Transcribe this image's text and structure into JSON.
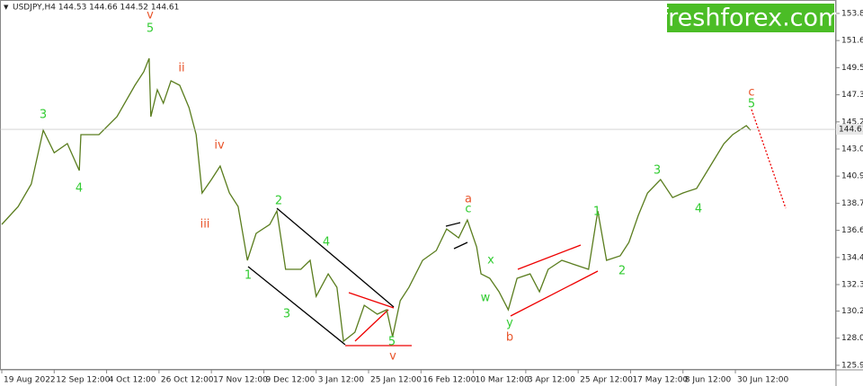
{
  "header": "USDJPY,H4 144.53 144.66 144.52 144.61",
  "logo": "freshforex.com",
  "chart_data": {
    "type": "line",
    "x": [
      0,
      30,
      54,
      76,
      96,
      120,
      142,
      145,
      178,
      211,
      244,
      260,
      270,
      273,
      285,
      296,
      310,
      326,
      343,
      356,
      367,
      384,
      400,
      417,
      433,
      450,
      466,
      491,
      504,
      520,
      548,
      565,
      576,
      598,
      614,
      626,
      647,
      664,
      688,
      705,
      716,
      730,
      746,
      771,
      796,
      815,
      837,
      853,
      870,
      878,
      894,
      911,
      928,
      944,
      968,
      985,
      1001,
      1026,
      1051,
      1075,
      1092,
      1108,
      1133,
      1149,
      1166,
      1183,
      1207,
      1229,
      1248,
      1273,
      1298,
      1323,
      1339,
      1364,
      1372
    ],
    "values": [
      137.07,
      138.49,
      140.27,
      144.54,
      142.76,
      143.48,
      141.34,
      144.19,
      144.19,
      145.61,
      148.1,
      149.17,
      150.24,
      145.61,
      147.75,
      146.68,
      148.46,
      148.1,
      146.32,
      144.19,
      139.56,
      140.63,
      141.7,
      139.56,
      138.49,
      134.22,
      136.36,
      137.07,
      138.14,
      133.51,
      133.51,
      134.22,
      131.37,
      133.15,
      132.08,
      127.81,
      128.52,
      130.66,
      129.95,
      130.3,
      128.17,
      131.02,
      132.08,
      134.22,
      135.0,
      136.71,
      136.0,
      137.42,
      135.29,
      133.15,
      132.8,
      131.73,
      130.3,
      132.8,
      133.15,
      131.73,
      133.51,
      134.22,
      133.86,
      133.51,
      138.14,
      134.22,
      134.58,
      135.65,
      137.78,
      139.56,
      140.63,
      139.2,
      139.56,
      139.92,
      141.7,
      143.48,
      144.19,
      144.9,
      144.54
    ],
    "color": "#5a7d1e",
    "current_price": 144.61,
    "xlim": [
      0,
      1530
    ],
    "xticks": [
      {
        "value": 0,
        "label": "19 Aug 2022"
      },
      {
        "value": 96,
        "label": "12 Sep 12:00"
      },
      {
        "value": 192,
        "label": "4 Oct 12:00"
      },
      {
        "value": 288,
        "label": "26 Oct 12:00"
      },
      {
        "value": 384,
        "label": "17 Nov 12:00"
      },
      {
        "value": 480,
        "label": "9 Dec 12:00"
      },
      {
        "value": 576,
        "label": "3 Jan 12:00"
      },
      {
        "value": 672,
        "label": "25 Jan 12:00"
      },
      {
        "value": 768,
        "label": "16 Feb 12:00"
      },
      {
        "value": 864,
        "label": "10 Mar 12:00"
      },
      {
        "value": 960,
        "label": "3 Apr 12:00"
      },
      {
        "value": 1056,
        "label": "25 Apr 12:00"
      },
      {
        "value": 1152,
        "label": "17 May 12:00"
      },
      {
        "value": 1248,
        "label": "8 Jun 12:00"
      },
      {
        "value": 1344,
        "label": "30 Jun 12:00"
      }
    ],
    "ylim": [
      125.54,
      154.58
    ],
    "yticks": [
      {
        "value": 153.8,
        "label": "153.80"
      },
      151.65,
      {
        "value": 149.5,
        "label": "149.50"
      },
      147.35,
      {
        "value": 145.2,
        "label": "145.20"
      },
      143.05,
      {
        "value": 140.9,
        "label": "140.90"
      },
      138.75,
      {
        "value": 136.6,
        "label": "136.60"
      },
      134.45,
      {
        "value": 132.3,
        "label": "132.30"
      },
      {
        "value": 130.2,
        "label": "130.20"
      },
      128.05,
      {
        "value": 125.9,
        "label": "125.90"
      }
    ],
    "annotations": [
      {
        "text": "v",
        "color": "#e8542a"
      },
      {
        "text": "5",
        "color": "#33cc33"
      },
      {
        "text": "ii",
        "color": "#e8542a"
      },
      {
        "text": "3",
        "color": "#33cc33"
      },
      {
        "text": "4",
        "color": "#33cc33"
      },
      {
        "text": "iv",
        "color": "#e8542a"
      },
      {
        "text": "iii",
        "color": "#e8542a"
      },
      {
        "text": "2",
        "color": "#33cc33"
      },
      {
        "text": "1",
        "color": "#33cc33"
      },
      {
        "text": "4",
        "color": "#33cc33"
      },
      {
        "text": "3",
        "color": "#33cc33"
      },
      {
        "text": "5",
        "color": "#33cc33"
      },
      {
        "text": "v",
        "color": "#e8542a"
      },
      {
        "text": "a",
        "color": "#e8542a"
      },
      {
        "text": "c",
        "color": "#33cc33"
      },
      {
        "text": "x",
        "color": "#33cc33"
      },
      {
        "text": "w",
        "color": "#33cc33"
      },
      {
        "text": "y",
        "color": "#33cc33"
      },
      {
        "text": "b",
        "color": "#e8542a"
      },
      {
        "text": "1",
        "color": "#33cc33"
      },
      {
        "text": "2",
        "color": "#33cc33"
      },
      {
        "text": "3",
        "color": "#33cc33"
      },
      {
        "text": "4",
        "color": "#33cc33"
      },
      {
        "text": "c",
        "color": "#e8542a"
      },
      {
        "text": "5",
        "color": "#33cc33"
      }
    ]
  }
}
